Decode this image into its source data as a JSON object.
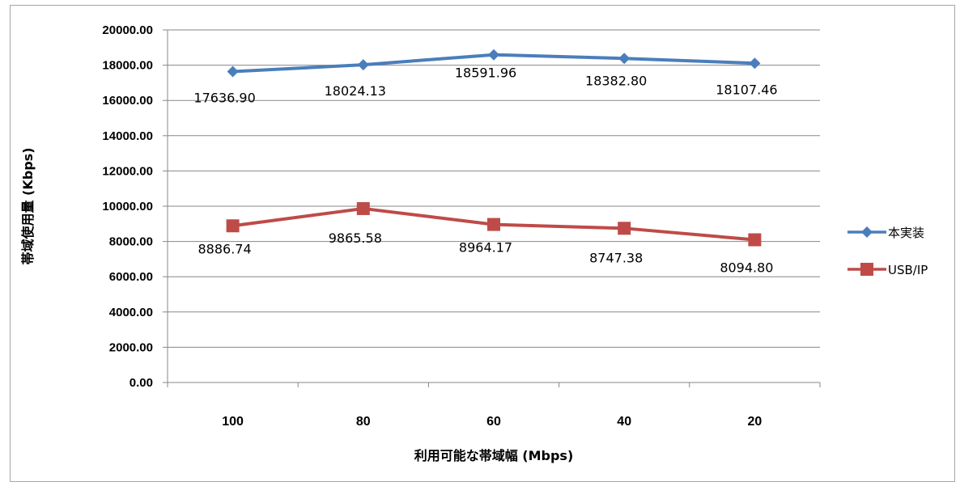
{
  "chart_data": {
    "type": "line",
    "title": "",
    "xlabel": "利用可能な帯域幅 (Mbps)",
    "ylabel": "帯域使用量 (Kbps)",
    "categories": [
      "100",
      "80",
      "60",
      "40",
      "20"
    ],
    "ylim": [
      0,
      20000
    ],
    "ytick_step": 2000,
    "ytick_labels": [
      "0.00",
      "2000.00",
      "4000.00",
      "6000.00",
      "8000.00",
      "10000.00",
      "12000.00",
      "14000.00",
      "16000.00",
      "18000.00",
      "20000.00"
    ],
    "grid": "horizontal",
    "legend_position": "right",
    "series": [
      {
        "name": "本実装",
        "marker": "diamond",
        "color": "#4a7ebb",
        "values": [
          17636.9,
          18024.13,
          18591.96,
          18382.8,
          18107.46
        ],
        "labels": [
          "17636.90",
          "18024.13",
          "18591.96",
          "18382.80",
          "18107.46"
        ]
      },
      {
        "name": "USB/IP",
        "marker": "square",
        "color": "#be4b48",
        "values": [
          8886.74,
          9865.58,
          8964.17,
          8747.38,
          8094.8
        ],
        "labels": [
          "8886.74",
          "9865.58",
          "8964.17",
          "8747.38",
          "8094.80"
        ]
      }
    ]
  }
}
